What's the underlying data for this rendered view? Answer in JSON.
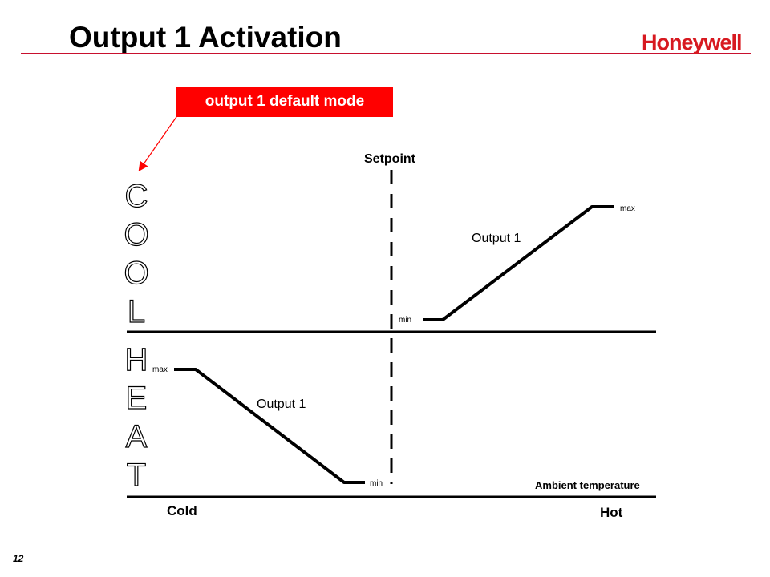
{
  "title": "Output 1 Activation",
  "logo_text": "Honeywell",
  "callout": "output 1 default mode",
  "page_number": "12",
  "diagram": {
    "cool_label": "COOL",
    "heat_label": "HEAT",
    "setpoint_label": "Setpoint",
    "cool_curve": {
      "series_label": "Output 1",
      "min_label": "min",
      "max_label": "max"
    },
    "heat_curve": {
      "series_label": "Output 1",
      "min_label": "min",
      "max_label": "max"
    },
    "x_axis_title": "Ambient temperature",
    "x_left_label": "Cold",
    "x_right_label": "Hot"
  },
  "colors": {
    "brand_red": "#d71920",
    "callout_bg": "#ff0000",
    "rule": "#c8102e",
    "line": "#000000"
  }
}
